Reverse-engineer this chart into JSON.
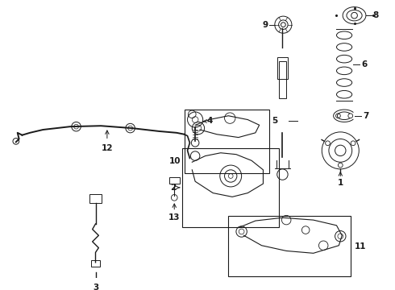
{
  "bg_color": "#ffffff",
  "line_color": "#1a1a1a",
  "figsize": [
    4.9,
    3.6
  ],
  "dpi": 100,
  "label_positions": {
    "1": [
      430,
      262,
      430,
      278
    ],
    "2": [
      232,
      233,
      218,
      225
    ],
    "3": [
      113,
      332,
      113,
      348
    ],
    "4": [
      246,
      172,
      258,
      165
    ],
    "5": [
      335,
      118,
      323,
      118
    ],
    "6": [
      444,
      72,
      456,
      72
    ],
    "7": [
      444,
      148,
      456,
      148
    ],
    "8": [
      448,
      18,
      460,
      18
    ],
    "9": [
      355,
      28,
      343,
      28
    ],
    "10": [
      228,
      178,
      215,
      178
    ],
    "11": [
      388,
      298,
      400,
      298
    ],
    "12": [
      128,
      205,
      128,
      218
    ],
    "13": [
      211,
      275,
      211,
      288
    ]
  }
}
